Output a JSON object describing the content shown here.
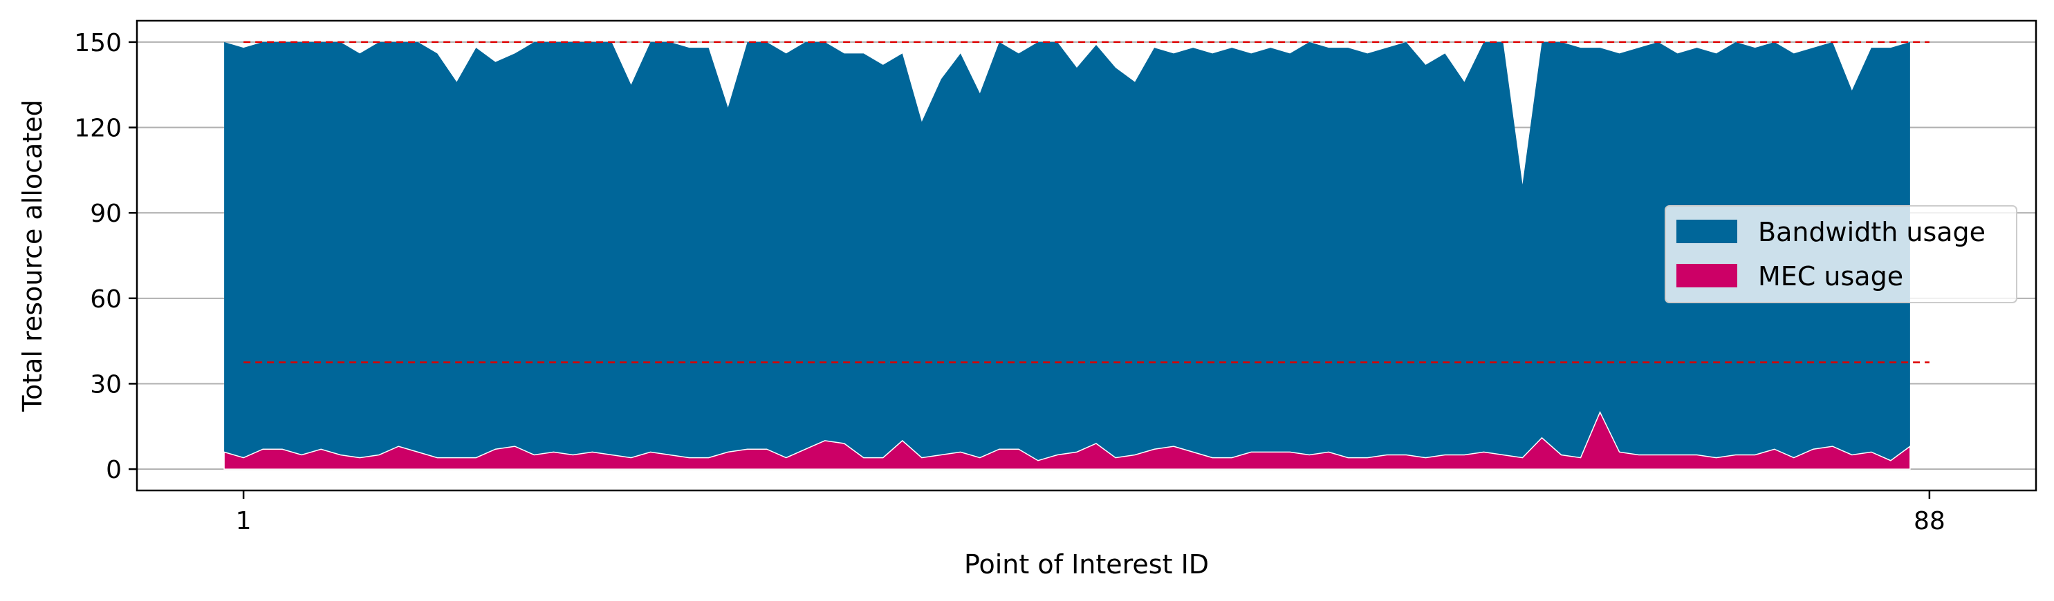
{
  "colors": {
    "bandwidth": "#006699",
    "mec": "#cc0066",
    "threshold": "#dd0000",
    "grid": "#b0b0b0",
    "axes": "#000000"
  },
  "chart_data": {
    "type": "area",
    "title": "",
    "xlabel": "Point of Interest ID",
    "ylabel": "Total resource allocated",
    "xlim": [
      -4.5,
      93.5
    ],
    "ylim": [
      -7.5,
      157.5
    ],
    "xticks": [
      1,
      88
    ],
    "yticks": [
      0,
      30,
      60,
      90,
      120,
      150
    ],
    "grid": "y",
    "legend_position": "center-right",
    "thresholds": [
      {
        "y": 150,
        "x_range": [
          1,
          88
        ],
        "style": "dashed"
      },
      {
        "y": 37.5,
        "x_range": [
          1,
          88
        ],
        "style": "dashed"
      }
    ],
    "x_start": 0,
    "series": [
      {
        "name": "Bandwidth usage",
        "values": [
          150,
          148,
          150,
          150,
          150,
          150,
          150,
          146,
          150,
          150,
          150,
          146,
          136,
          148,
          143,
          146,
          150,
          150,
          150,
          150,
          150,
          135,
          150,
          150,
          148,
          148,
          127,
          150,
          150,
          146,
          150,
          150,
          146,
          146,
          142,
          146,
          122,
          137,
          146,
          132,
          150,
          146,
          150,
          150,
          141,
          149,
          141,
          136,
          148,
          146,
          148,
          146,
          148,
          146,
          148,
          146,
          150,
          148,
          148,
          146,
          148,
          150,
          142,
          146,
          136,
          150,
          150,
          100,
          150,
          150,
          148,
          148,
          146,
          148,
          150,
          146,
          148,
          146,
          150,
          148,
          150,
          146,
          148,
          150,
          133,
          148,
          148,
          150
        ]
      },
      {
        "name": "MEC usage",
        "values": [
          6,
          4,
          7,
          7,
          5,
          7,
          5,
          4,
          5,
          8,
          6,
          4,
          4,
          4,
          7,
          8,
          5,
          6,
          5,
          6,
          5,
          4,
          6,
          5,
          4,
          4,
          6,
          7,
          7,
          4,
          7,
          10,
          9,
          4,
          4,
          10,
          4,
          5,
          6,
          4,
          7,
          7,
          3,
          5,
          6,
          9,
          4,
          5,
          7,
          8,
          6,
          4,
          4,
          6,
          6,
          6,
          5,
          6,
          4,
          4,
          5,
          5,
          4,
          5,
          5,
          6,
          5,
          4,
          11,
          5,
          4,
          20,
          6,
          5,
          5,
          5,
          5,
          4,
          5,
          5,
          7,
          4,
          7,
          8,
          5,
          6,
          3,
          8
        ]
      }
    ]
  }
}
